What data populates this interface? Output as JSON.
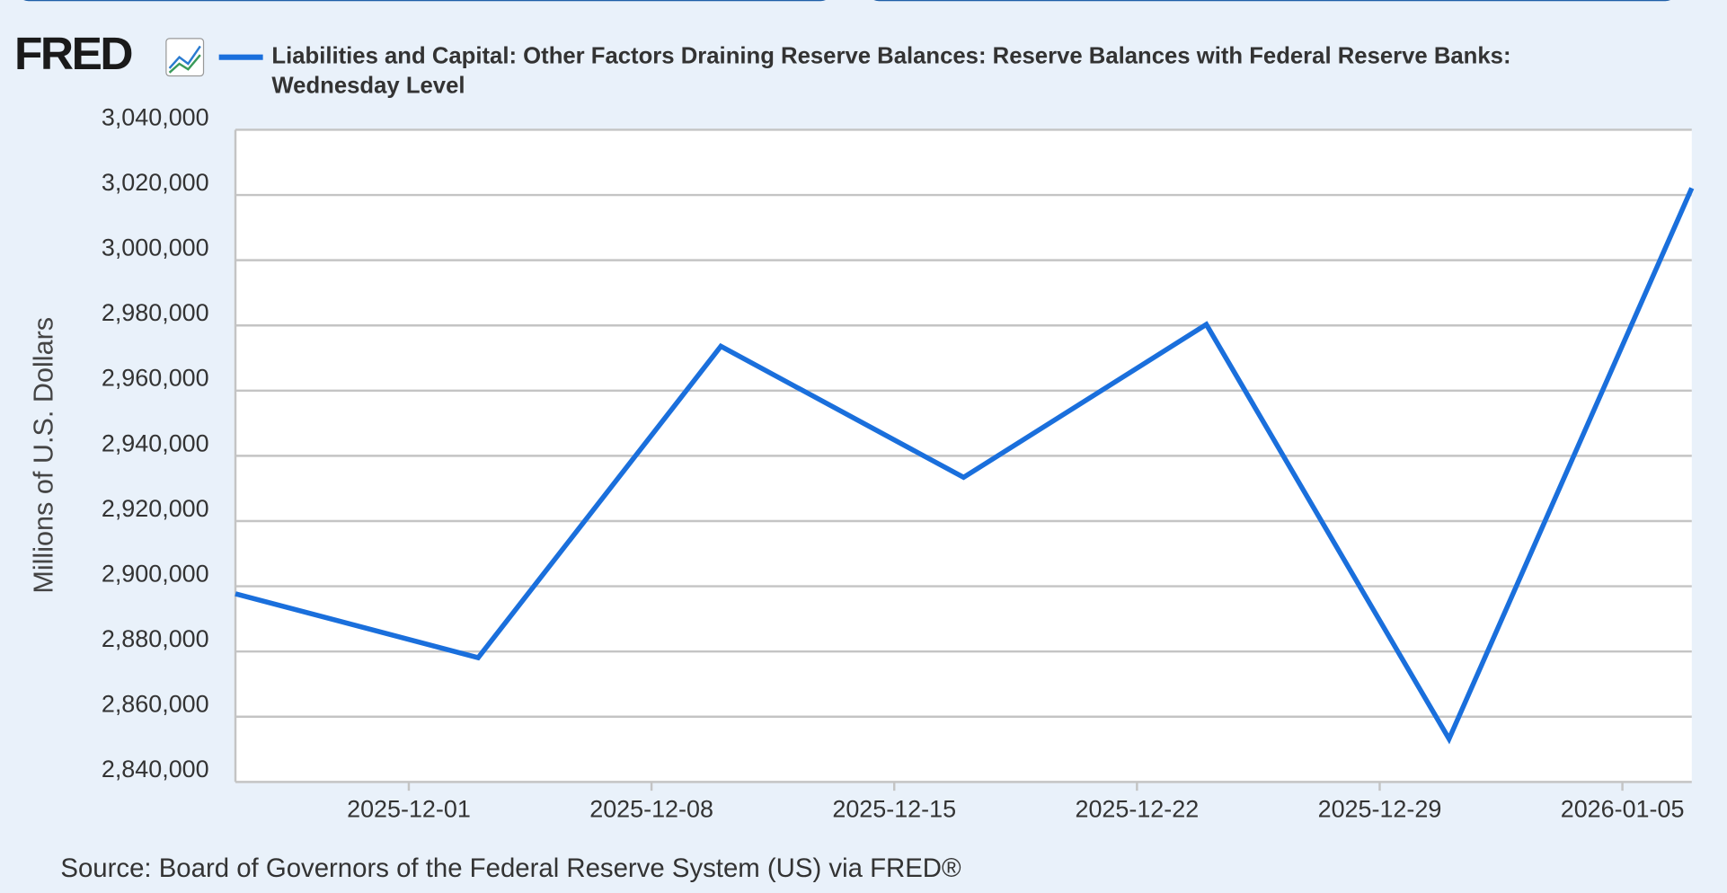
{
  "chart_data": {
    "type": "line",
    "logo": "FRED",
    "y_label": "Millions of U.S. Dollars",
    "source": "Source: Board of Governors of the Federal Reserve System (US) via FRED®",
    "x": [
      "2025-11-26",
      "2025-12-03",
      "2025-12-10",
      "2025-12-17",
      "2025-12-24",
      "2025-12-31",
      "2026-01-07"
    ],
    "series": [
      {
        "name": "Liabilities and Capital: Other Factors Draining Reserve Balances: Reserve Balances with Federal Reserve Banks: Wednesday Level",
        "color": "#1a6fdc",
        "values": [
          2897700,
          2878100,
          2973600,
          2933400,
          2980300,
          2853200,
          3022100
        ]
      }
    ],
    "xlim": [
      "2025-11-26",
      "2026-01-07"
    ],
    "xticks": [
      "2025-12-01",
      "2025-12-08",
      "2025-12-15",
      "2025-12-22",
      "2025-12-29",
      "2026-01-05"
    ],
    "ylim": [
      2840000,
      3040000
    ],
    "yticks": [
      {
        "value": 2840000,
        "label": "2,840,000"
      },
      {
        "value": 2860000,
        "label": "2,860,000"
      },
      {
        "value": 2880000,
        "label": "2,880,000"
      },
      {
        "value": 2900000,
        "label": "2,900,000"
      },
      {
        "value": 2920000,
        "label": "2,920,000"
      },
      {
        "value": 2940000,
        "label": "2,940,000"
      },
      {
        "value": 2960000,
        "label": "2,960,000"
      },
      {
        "value": 2980000,
        "label": "2,980,000"
      },
      {
        "value": 3000000,
        "label": "3,000,000"
      },
      {
        "value": 3020000,
        "label": "3,020,000"
      },
      {
        "value": 3040000,
        "label": "3,040,000"
      }
    ],
    "grid": true
  }
}
